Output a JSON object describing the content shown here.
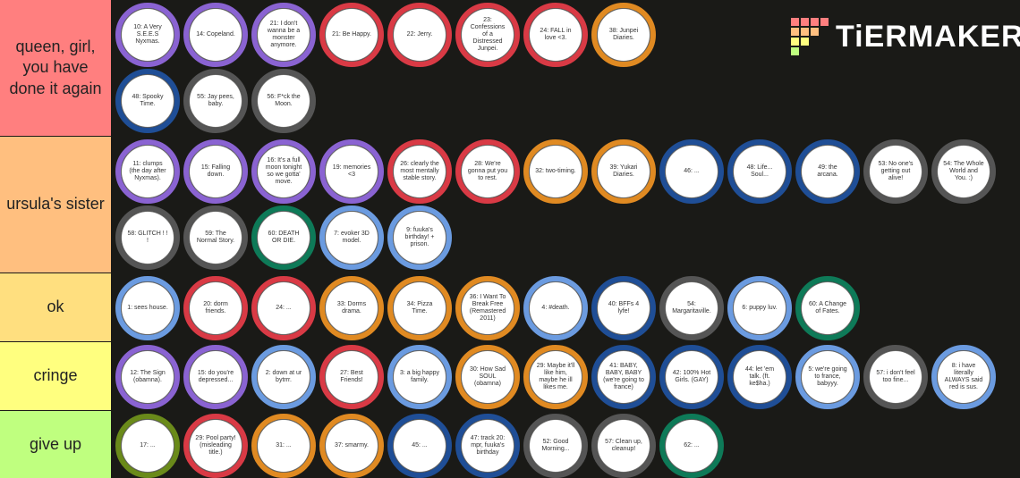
{
  "logo": "TiERMAKER",
  "tiers": [
    {
      "label": "queen, girl, you have done it again",
      "color": "#ff7f7f",
      "items": [
        {
          "text": "10: A Very S.E.E.S Nyxmas.",
          "color": "#8a63d2"
        },
        {
          "text": "14: Copeland.",
          "color": "#8a63d2"
        },
        {
          "text": "21: I don't wanna be a monster anymore.",
          "color": "#8a63d2"
        },
        {
          "text": "21: Be Happy.",
          "color": "#d93a45"
        },
        {
          "text": "22: Jerry.",
          "color": "#d93a45"
        },
        {
          "text": "23: Confessions of a Distressed Junpei.",
          "color": "#d93a45"
        },
        {
          "text": "24: FALL in love <3.",
          "color": "#d93a45"
        },
        {
          "text": "38: Junpei Diaries.",
          "color": "#e08a22"
        },
        {
          "text": "48: Spooky Time.",
          "color": "#1f4e96"
        },
        {
          "text": "55: Jay pees, baby.",
          "color": "#555555"
        },
        {
          "text": "56: F*ck the Moon.",
          "color": "#555555"
        }
      ]
    },
    {
      "label": "ursula's sister",
      "color": "#ffbf7f",
      "items": [
        {
          "text": "11: clumps (the day after Nyxmas).",
          "color": "#8a63d2"
        },
        {
          "text": "15: Falling down.",
          "color": "#8a63d2"
        },
        {
          "text": "16: It's a full moon tonight so we gotta' move.",
          "color": "#8a63d2"
        },
        {
          "text": "19: memories <3",
          "color": "#8a63d2"
        },
        {
          "text": "26: clearly the most mentally stable story.",
          "color": "#d93a45"
        },
        {
          "text": "28: We're gonna put you to rest.",
          "color": "#d93a45"
        },
        {
          "text": "32: two-timing.",
          "color": "#e08a22"
        },
        {
          "text": "39: Yukari Diaries.",
          "color": "#e08a22"
        },
        {
          "text": "46: ...",
          "color": "#1f4e96"
        },
        {
          "text": "48: Life... Soul...",
          "color": "#1f4e96"
        },
        {
          "text": "49: the arcana.",
          "color": "#1f4e96"
        },
        {
          "text": "53: No one's getting out alive!",
          "color": "#555555"
        },
        {
          "text": "54: The Whole World and You. :)",
          "color": "#555555"
        },
        {
          "text": "58: GLITCH ! ! !",
          "color": "#555555"
        },
        {
          "text": "59: The Normal Story.",
          "color": "#555555"
        },
        {
          "text": "60: DEATH OR DIE.",
          "color": "#0e7a58"
        },
        {
          "text": "7: evoker 3D model.",
          "color": "#6b9be0"
        },
        {
          "text": "9: fuuka's birthday! + prison.",
          "color": "#6b9be0"
        }
      ]
    },
    {
      "label": "ok",
      "color": "#ffdf7f",
      "items": [
        {
          "text": "1: sees house.",
          "color": "#6b9be0"
        },
        {
          "text": "20: dorm friends.",
          "color": "#d93a45"
        },
        {
          "text": "24: ...",
          "color": "#d93a45"
        },
        {
          "text": "33: Dorms drama.",
          "color": "#e08a22"
        },
        {
          "text": "34: Pizza Time.",
          "color": "#e08a22"
        },
        {
          "text": "36: I Want To Break Free (Remastered 2011)",
          "color": "#e08a22"
        },
        {
          "text": "4: #death.",
          "color": "#6b9be0"
        },
        {
          "text": "40: BFFs 4 lyfe!",
          "color": "#1f4e96"
        },
        {
          "text": "54: Margaritaville.",
          "color": "#555555"
        },
        {
          "text": "6: puppy luv.",
          "color": "#6b9be0"
        },
        {
          "text": "60: A Change of Fates.",
          "color": "#0e7a58"
        }
      ]
    },
    {
      "label": "cringe",
      "color": "#ffff7f",
      "items": [
        {
          "text": "12: The Sign (obamna).",
          "color": "#8a63d2"
        },
        {
          "text": "15: do you're depressed...",
          "color": "#8a63d2"
        },
        {
          "text": "2: down at ur bytrrr.",
          "color": "#6b9be0"
        },
        {
          "text": "27: Best Friends!",
          "color": "#d93a45"
        },
        {
          "text": "3: a big happy family.",
          "color": "#6b9be0"
        },
        {
          "text": "30: How Sad SOUL (obamna)",
          "color": "#e08a22"
        },
        {
          "text": "29: Maybe it'll like him, maybe he ill likes me.",
          "color": "#e08a22"
        },
        {
          "text": "41: BABY, BABY, BABY (we're going to france)",
          "color": "#1f4e96"
        },
        {
          "text": "42: 100% Hot Girls. (GAY)",
          "color": "#1f4e96"
        },
        {
          "text": "44: let 'em talk. (ft. ke$ha.)",
          "color": "#1f4e96"
        },
        {
          "text": "5: we're going to france, babyyy.",
          "color": "#6b9be0"
        },
        {
          "text": "57: i don't feel too fine...",
          "color": "#555555"
        },
        {
          "text": "8: i have literally ALWAYS said red is sus.",
          "color": "#6b9be0"
        }
      ]
    },
    {
      "label": "give up",
      "color": "#bfff7f",
      "items": [
        {
          "text": "17: ...",
          "color": "#6a8a1a"
        },
        {
          "text": "29: Pool party! (misleading title.)",
          "color": "#d93a45"
        },
        {
          "text": "31: ...",
          "color": "#e08a22"
        },
        {
          "text": "37: smarmy.",
          "color": "#e08a22"
        },
        {
          "text": "45: ...",
          "color": "#1f4e96"
        },
        {
          "text": "47: track 20: mpr, fuuka's birthday",
          "color": "#1f4e96"
        },
        {
          "text": "52: Good Morning...",
          "color": "#555555"
        },
        {
          "text": "57: Clean up, cleanup!",
          "color": "#555555"
        },
        {
          "text": "62: ...",
          "color": "#0e7a58"
        }
      ]
    }
  ]
}
